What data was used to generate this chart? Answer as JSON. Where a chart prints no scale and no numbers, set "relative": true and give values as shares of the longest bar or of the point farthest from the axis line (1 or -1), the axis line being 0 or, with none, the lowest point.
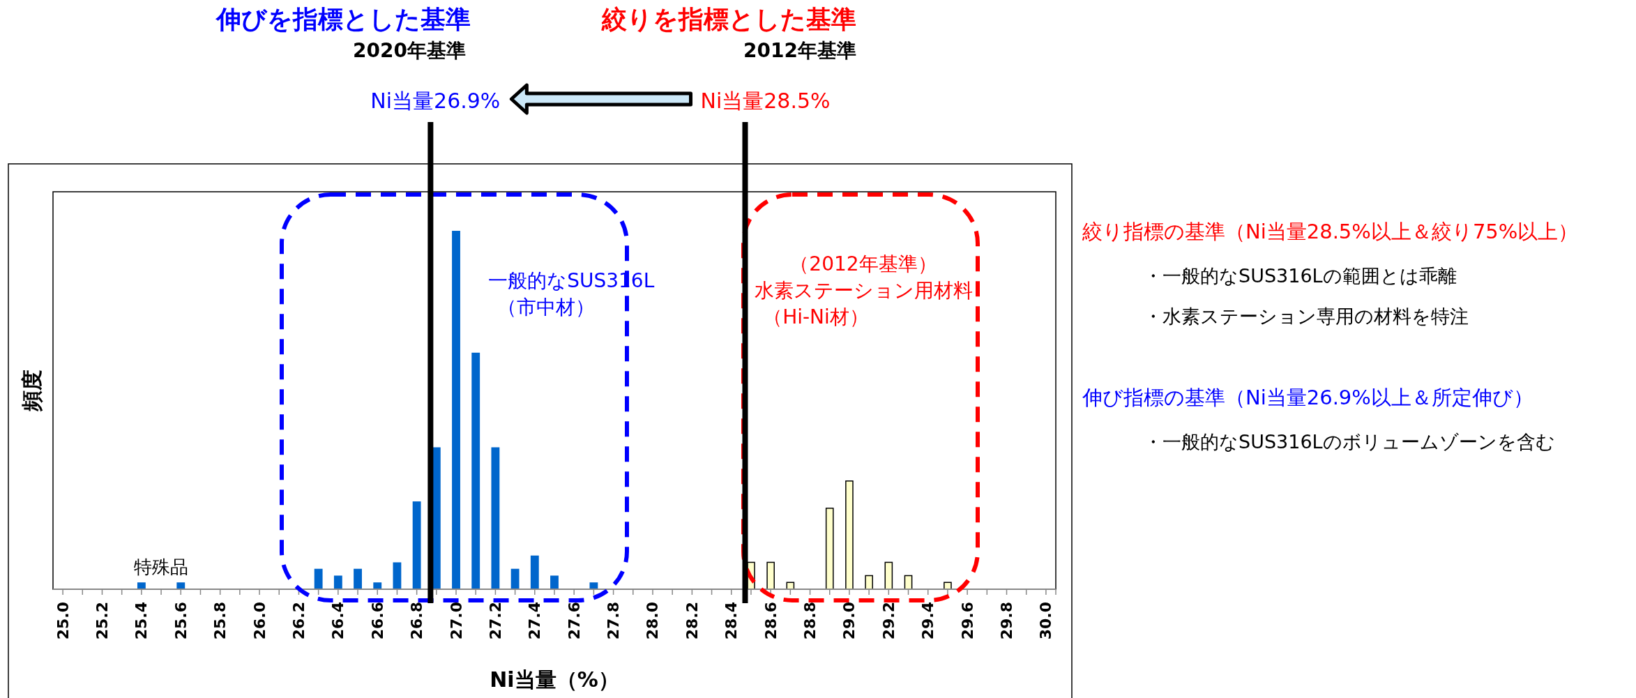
{
  "chart_data": {
    "type": "bar",
    "relative": true,
    "xlabel": "Ni当量（%）",
    "ylabel": "頻度",
    "xlim": [
      24.95,
      30.05
    ],
    "xticks": [
      {
        "value": 25,
        "label": "25.0"
      },
      {
        "value": 25.1,
        "label": null
      },
      25.2,
      {
        "value": 25.3,
        "label": null
      },
      25.4,
      {
        "value": 25.5,
        "label": null
      },
      25.6,
      {
        "value": 25.7,
        "label": null
      },
      25.8,
      {
        "value": 25.9,
        "label": null
      },
      {
        "value": 26,
        "label": "26.0"
      },
      {
        "value": 26.1,
        "label": null
      },
      26.2,
      {
        "value": 26.3,
        "label": null
      },
      26.4,
      {
        "value": 26.5,
        "label": null
      },
      26.6,
      {
        "value": 26.7,
        "label": null
      },
      26.8,
      {
        "value": 26.9,
        "label": null
      },
      {
        "value": 27,
        "label": "27.0"
      },
      {
        "value": 27.1,
        "label": null
      },
      27.2,
      {
        "value": 27.3,
        "label": null
      },
      27.4,
      {
        "value": 27.5,
        "label": null
      },
      27.6,
      {
        "value": 27.7,
        "label": null
      },
      27.8,
      {
        "value": 27.9,
        "label": null
      },
      {
        "value": 28,
        "label": "28.0"
      },
      {
        "value": 28.1,
        "label": null
      },
      28.2,
      {
        "value": 28.3,
        "label": null
      },
      28.4,
      {
        "value": 28.5,
        "label": null
      },
      28.6,
      {
        "value": 28.7,
        "label": null
      },
      28.8,
      {
        "value": 28.9,
        "label": null
      },
      {
        "value": 29,
        "label": "29.0"
      },
      {
        "value": 29.1,
        "label": null
      },
      29.2,
      {
        "value": 29.3,
        "label": null
      },
      29.4,
      {
        "value": 29.5,
        "label": null
      },
      29.6,
      {
        "value": 29.7,
        "label": null
      },
      29.8,
      {
        "value": 29.9,
        "label": null
      },
      {
        "value": 30,
        "label": "30.0"
      }
    ],
    "series": [
      {
        "color": "#0066cc",
        "x": [
          25.4,
          25.6,
          26.3,
          26.4,
          26.5,
          26.6,
          26.7,
          26.8,
          26.9,
          27.0,
          27.1,
          27.2,
          27.3,
          27.4,
          27.5,
          27.7
        ],
        "values": [
          0.019,
          0.019,
          0.057,
          0.038,
          0.057,
          0.019,
          0.075,
          0.245,
          0.396,
          1,
          0.66,
          0.396,
          0.057,
          0.094,
          0.038,
          0.019
        ]
      },
      {
        "color": "#ffffcc",
        "x": [
          28.5,
          28.6,
          28.7,
          28.9,
          29.0,
          29.1,
          29.2,
          29.3,
          29.5
        ],
        "values": [
          0.075,
          0.075,
          0.019,
          0.226,
          0.302,
          0.038,
          0.075,
          0.038,
          0.019
        ]
      }
    ],
    "ref_lines": [
      {
        "axis": "x",
        "value": 26.87,
        "label": "Ni当量26.9%",
        "color": "#000000"
      },
      {
        "axis": "x",
        "value": 28.47,
        "label": "Ni当量28.5%",
        "color": "#000000"
      }
    ],
    "annotations": [
      "伸びを指標とした基準",
      "2020年基準",
      "絞りを指標とした基準",
      "2012年基準",
      "絞り指標の基準（Ni当量28.5%以上＆絞り75%以上）",
      "・一般的なSUS316Lの範囲とは乖離",
      "・水素ステーション専用の材料を特注",
      "伸び指標の基準（Ni当量26.9%以上＆所定伸び）",
      "・一般的なSUS316Lのボリュームゾーンを含む",
      "特殊品",
      "一般的なSUS316L",
      "（市中材）",
      "（2012年基準）",
      "水素ステーション用材料",
      "（Hi-Ni材）"
    ]
  }
}
